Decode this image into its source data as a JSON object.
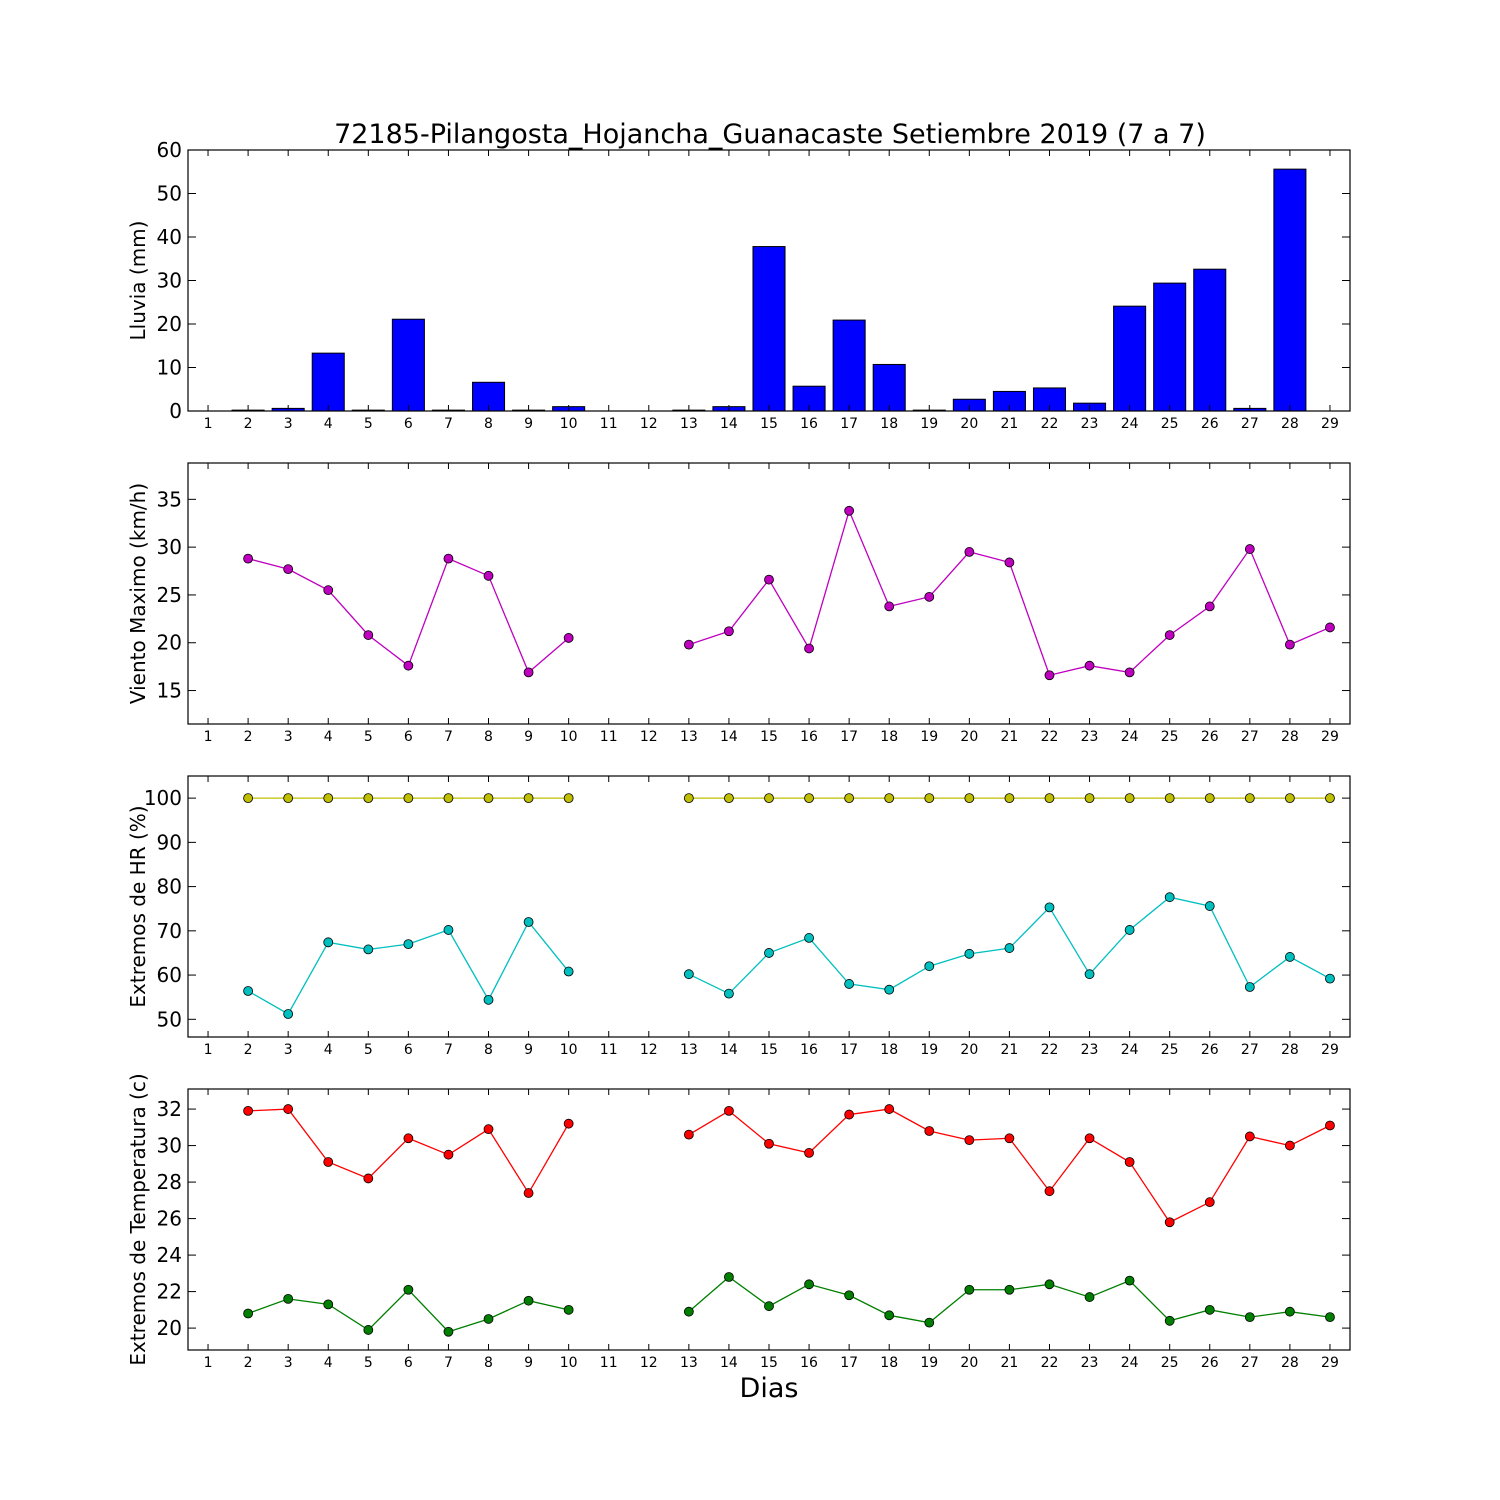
{
  "figure": {
    "title": "72185-Pilangosta_Hojancha_Guanacaste Setiembre 2019  (7 a 7)",
    "xlabel": "Dias"
  },
  "chart_data": [
    {
      "type": "bar",
      "ylabel": "Lluvia (mm)",
      "xlim": [
        0.5,
        29.5
      ],
      "ylim": [
        0,
        60
      ],
      "yticks": [
        0,
        10,
        20,
        30,
        40,
        50,
        60
      ],
      "xticks": [
        1,
        2,
        3,
        4,
        5,
        6,
        7,
        8,
        9,
        10,
        11,
        12,
        13,
        14,
        15,
        16,
        17,
        18,
        19,
        20,
        21,
        22,
        23,
        24,
        25,
        26,
        27,
        28,
        29
      ],
      "grid": false,
      "series": [
        {
          "color": "#0000ff",
          "x": [
            2,
            3,
            4,
            5,
            6,
            7,
            8,
            9,
            10,
            13,
            14,
            15,
            16,
            17,
            18,
            19,
            20,
            21,
            22,
            23,
            24,
            25,
            26,
            27,
            28
          ],
          "values": [
            0.2,
            0.6,
            13.3,
            0.2,
            21.1,
            0.2,
            6.6,
            0.2,
            1.0,
            0.2,
            1.0,
            37.8,
            5.7,
            20.9,
            10.7,
            0.2,
            2.7,
            4.5,
            5.3,
            1.8,
            24.1,
            29.4,
            32.6,
            0.6,
            55.6
          ]
        }
      ]
    },
    {
      "type": "line",
      "ylabel": "Viento Maximo (km/h)",
      "xlim": [
        0.5,
        29.5
      ],
      "ylim": [
        11.5,
        38.8
      ],
      "yticks": [
        15,
        20,
        25,
        30,
        35
      ],
      "xticks": [
        1,
        2,
        3,
        4,
        5,
        6,
        7,
        8,
        9,
        10,
        11,
        12,
        13,
        14,
        15,
        16,
        17,
        18,
        19,
        20,
        21,
        22,
        23,
        24,
        25,
        26,
        27,
        28,
        29
      ],
      "grid": false,
      "series": [
        {
          "color": "#bf00bf",
          "segments": [
            {
              "x": [
                2,
                3,
                4,
                5,
                6,
                7,
                8,
                9,
                10
              ],
              "y": [
                28.8,
                27.7,
                25.5,
                20.8,
                17.6,
                28.8,
                27.0,
                16.9,
                20.5
              ]
            },
            {
              "x": [
                13,
                14,
                15,
                16,
                17,
                18,
                19,
                20,
                21,
                22,
                23,
                24,
                25,
                26,
                27,
                28,
                29
              ],
              "y": [
                19.8,
                21.2,
                26.6,
                19.4,
                33.8,
                23.8,
                24.8,
                29.5,
                28.4,
                16.6,
                17.6,
                16.9,
                20.8,
                23.8,
                29.8,
                19.8,
                21.6
              ]
            }
          ]
        }
      ]
    },
    {
      "type": "line",
      "ylabel": "Extremos de HR (%)",
      "xlim": [
        0.5,
        29.5
      ],
      "ylim": [
        46,
        105
      ],
      "yticks": [
        50,
        60,
        70,
        80,
        90,
        100
      ],
      "xticks": [
        1,
        2,
        3,
        4,
        5,
        6,
        7,
        8,
        9,
        10,
        11,
        12,
        13,
        14,
        15,
        16,
        17,
        18,
        19,
        20,
        21,
        22,
        23,
        24,
        25,
        26,
        27,
        28,
        29
      ],
      "grid": false,
      "series": [
        {
          "color": "#bfbf00",
          "segments": [
            {
              "x": [
                2,
                3,
                4,
                5,
                6,
                7,
                8,
                9,
                10
              ],
              "y": [
                100,
                100,
                100,
                100,
                100,
                100,
                100,
                100,
                100
              ]
            },
            {
              "x": [
                13,
                14,
                15,
                16,
                17,
                18,
                19,
                20,
                21,
                22,
                23,
                24,
                25,
                26,
                27,
                28,
                29
              ],
              "y": [
                100,
                100,
                100,
                100,
                100,
                100,
                100,
                100,
                100,
                100,
                100,
                100,
                100,
                100,
                100,
                100,
                100
              ]
            }
          ]
        },
        {
          "color": "#00bfbf",
          "segments": [
            {
              "x": [
                2,
                3,
                4,
                5,
                6,
                7,
                8,
                9,
                10
              ],
              "y": [
                56.4,
                51.2,
                67.4,
                65.8,
                67.0,
                70.2,
                54.4,
                72.0,
                60.8
              ]
            },
            {
              "x": [
                13,
                14,
                15,
                16,
                17,
                18,
                19,
                20,
                21,
                22,
                23,
                24,
                25,
                26,
                27,
                28,
                29
              ],
              "y": [
                60.2,
                55.8,
                65.0,
                68.4,
                58.0,
                56.7,
                62.0,
                64.8,
                66.1,
                75.3,
                60.2,
                70.2,
                77.6,
                75.6,
                57.3,
                64.1,
                59.2
              ]
            }
          ]
        }
      ]
    },
    {
      "type": "line",
      "ylabel": "Extremos de Temperatura (c)",
      "xlim": [
        0.5,
        29.5
      ],
      "ylim": [
        18.8,
        33.1
      ],
      "yticks": [
        20,
        22,
        24,
        26,
        28,
        30,
        32
      ],
      "xticks": [
        1,
        2,
        3,
        4,
        5,
        6,
        7,
        8,
        9,
        10,
        11,
        12,
        13,
        14,
        15,
        16,
        17,
        18,
        19,
        20,
        21,
        22,
        23,
        24,
        25,
        26,
        27,
        28,
        29
      ],
      "grid": false,
      "series": [
        {
          "color": "#ff0000",
          "segments": [
            {
              "x": [
                2,
                3,
                4,
                5,
                6,
                7,
                8,
                9,
                10
              ],
              "y": [
                31.9,
                32.0,
                29.1,
                28.2,
                30.4,
                29.5,
                30.9,
                27.4,
                31.2
              ]
            },
            {
              "x": [
                13,
                14,
                15,
                16,
                17,
                18,
                19,
                20,
                21,
                22,
                23,
                24,
                25,
                26,
                27,
                28,
                29
              ],
              "y": [
                30.6,
                31.9,
                30.1,
                29.6,
                31.7,
                32.0,
                30.8,
                30.3,
                30.4,
                27.5,
                30.4,
                29.1,
                25.8,
                26.9,
                30.5,
                30.0,
                31.1
              ]
            }
          ]
        },
        {
          "color": "#007f00",
          "segments": [
            {
              "x": [
                2,
                3,
                4,
                5,
                6,
                7,
                8,
                9,
                10
              ],
              "y": [
                20.8,
                21.6,
                21.3,
                19.9,
                22.1,
                19.8,
                20.5,
                21.5,
                21.0
              ]
            },
            {
              "x": [
                13,
                14,
                15,
                16,
                17,
                18,
                19,
                20,
                21,
                22,
                23,
                24,
                25,
                26,
                27,
                28,
                29
              ],
              "y": [
                20.9,
                22.8,
                21.2,
                22.4,
                21.8,
                20.7,
                20.3,
                22.1,
                22.1,
                22.4,
                21.7,
                22.6,
                20.4,
                21.0,
                20.6,
                20.9,
                20.6
              ]
            }
          ]
        }
      ]
    }
  ]
}
